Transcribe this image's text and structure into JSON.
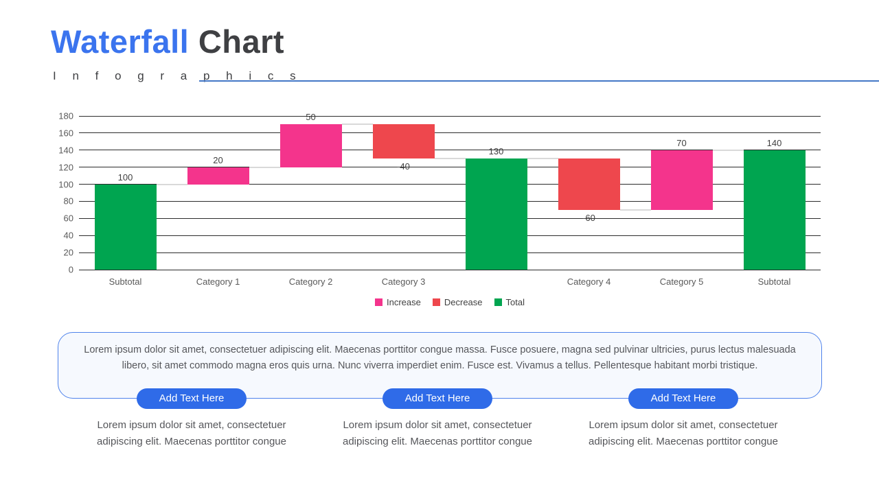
{
  "header": {
    "title_primary": "Waterfall",
    "title_secondary": "Chart",
    "subtitle": "I n f o g r a p h i c s"
  },
  "chart_data": {
    "type": "bar",
    "subtype": "waterfall",
    "title": "",
    "xlabel": "",
    "ylabel": "",
    "ylim": [
      0,
      180
    ],
    "ytick_step": 20,
    "grid": true,
    "legend_position": "bottom-center",
    "categories": [
      "Subtotal",
      "Category 1",
      "Category 2",
      "Category 3",
      "",
      "Category 4",
      "Category 5",
      "Subtotal"
    ],
    "bars": [
      {
        "category": "Subtotal",
        "start": 0,
        "end": 100,
        "type": "total",
        "label": "100",
        "label_pos": "above"
      },
      {
        "category": "Category 1",
        "start": 100,
        "end": 120,
        "type": "increase",
        "label": "20",
        "label_pos": "above"
      },
      {
        "category": "Category 2",
        "start": 120,
        "end": 170,
        "type": "increase",
        "label": "50",
        "label_pos": "above"
      },
      {
        "category": "Category 3",
        "start": 170,
        "end": 130,
        "type": "decrease",
        "label": "-40",
        "label_pos": "below"
      },
      {
        "category": "",
        "start": 0,
        "end": 130,
        "type": "total",
        "label": "130",
        "label_pos": "above"
      },
      {
        "category": "Category 4",
        "start": 130,
        "end": 70,
        "type": "decrease",
        "label": "-60",
        "label_pos": "below"
      },
      {
        "category": "Category 5",
        "start": 70,
        "end": 140,
        "type": "increase",
        "label": "70",
        "label_pos": "above"
      },
      {
        "category": "Subtotal",
        "start": 0,
        "end": 140,
        "type": "total",
        "label": "140",
        "label_pos": "above"
      }
    ],
    "legend": [
      {
        "label": "Increase",
        "type": "increase"
      },
      {
        "label": "Decrease",
        "type": "decrease"
      },
      {
        "label": "Total",
        "type": "total"
      }
    ],
    "colors": {
      "increase": "#F4348C",
      "decrease": "#EE474D",
      "total": "#00A550",
      "gridline": "#2B2B2B",
      "connector": "#D9D9D9",
      "axis_text": "#595959",
      "label_text": "#404040"
    }
  },
  "callout": {
    "paragraph": "Lorem ipsum dolor sit amet, consectetuer adipiscing elit. Maecenas porttitor congue massa. Fusce posuere, magna sed pulvinar ultricies, purus lectus malesuada libero, sit amet commodo magna eros quis urna. Nunc viverra imperdiet enim. Fusce est. Vivamus a tellus. Pellentesque habitant morbi tristique."
  },
  "buttons": [
    {
      "label": "Add Text Here"
    },
    {
      "label": "Add Text Here"
    },
    {
      "label": "Add Text Here"
    }
  ],
  "notes": [
    {
      "text": "Lorem ipsum dolor sit amet, consectetuer adipiscing elit. Maecenas porttitor congue"
    },
    {
      "text": "Lorem ipsum dolor sit amet, consectetuer adipiscing elit. Maecenas porttitor congue"
    },
    {
      "text": "Lorem ipsum dolor sit amet, consectetuer adipiscing elit. Maecenas porttitor congue"
    }
  ],
  "colors": {
    "title_blue": "#3B74EE",
    "title_dark": "#3F4043",
    "accent_button": "#2F6BE8",
    "divider": "#4377C6",
    "box_border": "#4E82EB",
    "box_bg": "#F6F9FE"
  }
}
